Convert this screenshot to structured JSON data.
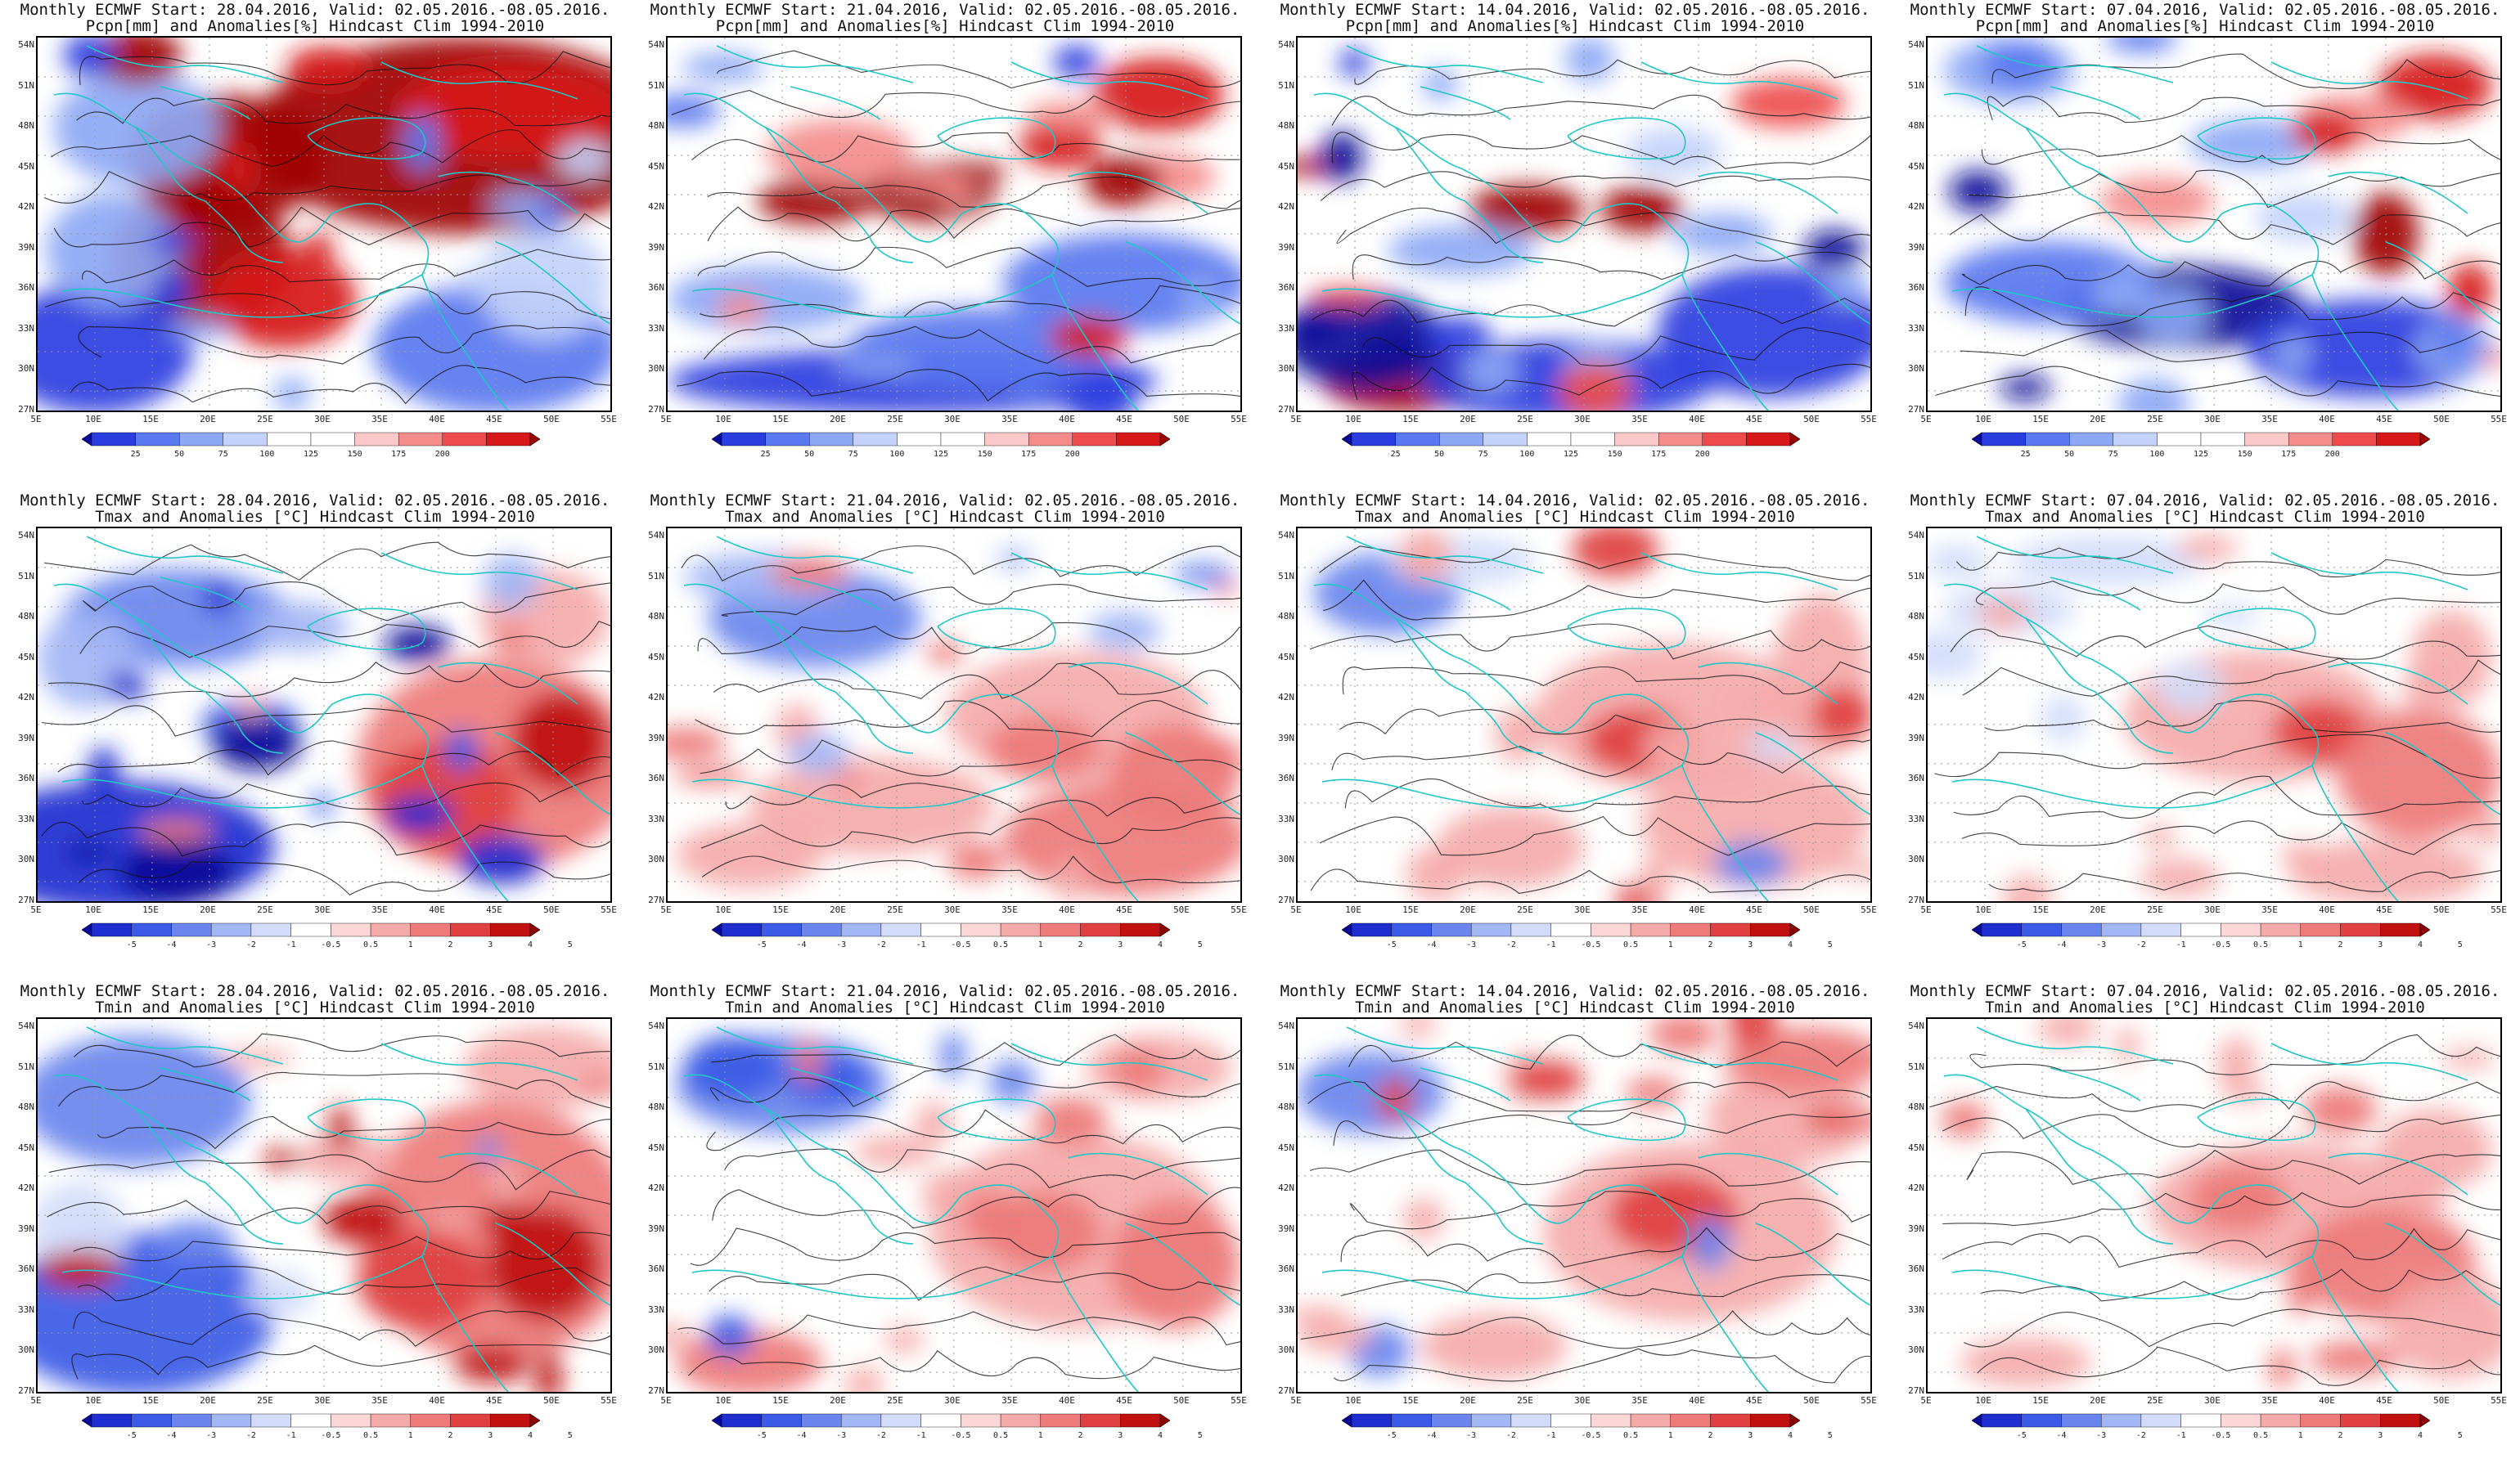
{
  "panels": [
    {
      "title1": "Monthly ECMWF Start: 28.04.2016, Valid: 02.05.2016.-08.05.2016.",
      "title2": "Pcpn[mm] and Anomalies[%] Hindcast Clim 1994-2010",
      "var": "pcpn",
      "pattern": 0
    },
    {
      "title1": "Monthly ECMWF Start: 21.04.2016, Valid: 02.05.2016.-08.05.2016.",
      "title2": "Pcpn[mm] and Anomalies[%] Hindcast Clim 1994-2010",
      "var": "pcpn",
      "pattern": 1
    },
    {
      "title1": "Monthly ECMWF Start: 14.04.2016, Valid: 02.05.2016.-08.05.2016.",
      "title2": "Pcpn[mm] and Anomalies[%] Hindcast Clim 1994-2010",
      "var": "pcpn",
      "pattern": 2
    },
    {
      "title1": "Monthly ECMWF Start: 07.04.2016, Valid: 02.05.2016.-08.05.2016.",
      "title2": "Pcpn[mm] and Anomalies[%] Hindcast Clim 1994-2010",
      "var": "pcpn",
      "pattern": 3
    },
    {
      "title1": "Monthly ECMWF Start: 28.04.2016, Valid: 02.05.2016.-08.05.2016.",
      "title2": "Tmax and Anomalies [°C] Hindcast Clim 1994-2010",
      "var": "tmax",
      "pattern": 4
    },
    {
      "title1": "Monthly ECMWF Start: 21.04.2016, Valid: 02.05.2016.-08.05.2016.",
      "title2": "Tmax and Anomalies [°C] Hindcast Clim 1994-2010",
      "var": "tmax",
      "pattern": 5
    },
    {
      "title1": "Monthly ECMWF Start: 14.04.2016, Valid: 02.05.2016.-08.05.2016.",
      "title2": "Tmax and Anomalies [°C] Hindcast Clim 1994-2010",
      "var": "tmax",
      "pattern": 6
    },
    {
      "title1": "Monthly ECMWF Start: 07.04.2016, Valid: 02.05.2016.-08.05.2016.",
      "title2": "Tmax and Anomalies [°C] Hindcast Clim 1994-2010",
      "var": "tmax",
      "pattern": 7
    },
    {
      "title1": "Monthly ECMWF Start: 28.04.2016, Valid: 02.05.2016.-08.05.2016.",
      "title2": "Tmin and Anomalies [°C] Hindcast Clim 1994-2010",
      "var": "tmin",
      "pattern": 8
    },
    {
      "title1": "Monthly ECMWF Start: 21.04.2016, Valid: 02.05.2016.-08.05.2016.",
      "title2": "Tmin and Anomalies [°C] Hindcast Clim 1994-2010",
      "var": "tmin",
      "pattern": 9
    },
    {
      "title1": "Monthly ECMWF Start: 14.04.2016, Valid: 02.05.2016.-08.05.2016.",
      "title2": "Tmin and Anomalies [°C] Hindcast Clim 1994-2010",
      "var": "tmin",
      "pattern": 10
    },
    {
      "title1": "Monthly ECMWF Start: 07.04.2016, Valid: 02.05.2016.-08.05.2016.",
      "title2": "Tmin and Anomalies [°C] Hindcast Clim 1994-2010",
      "var": "tmin",
      "pattern": 11
    }
  ],
  "lat_labels": [
    "54N",
    "51N",
    "48N",
    "45N",
    "42N",
    "39N",
    "36N",
    "33N",
    "30N",
    "27N"
  ],
  "lon_labels": [
    "5E",
    "10E",
    "15E",
    "20E",
    "25E",
    "30E",
    "35E",
    "40E",
    "45E",
    "50E",
    "55E"
  ],
  "colorbars": {
    "pcpn": {
      "labels": [
        "25",
        "50",
        "75",
        "100",
        "125",
        "150",
        "175",
        "200"
      ],
      "colors": [
        "#0a0a9a",
        "#2a3de0",
        "#5a78f0",
        "#8da8f5",
        "#c3d2fa",
        "#ffffff",
        "#ffffff",
        "#fac8c8",
        "#f48c8c",
        "#ee4c4c",
        "#d61818",
        "#a00000"
      ]
    },
    "temp": {
      "labels": [
        "-5",
        "-4",
        "-3",
        "-2",
        "-1",
        "-0.5",
        "0.5",
        "1",
        "2",
        "3",
        "4",
        "5"
      ],
      "colors": [
        "#0a0a9a",
        "#1e2ed0",
        "#3b5ae6",
        "#6a86ee",
        "#a3b6f5",
        "#d2dcfa",
        "#ffffff",
        "#fad6d6",
        "#f5aaaa",
        "#ee7a7a",
        "#e04040",
        "#c01010",
        "#900000"
      ]
    }
  },
  "colors": {
    "coast": "#1fc7c7",
    "contour": "#111111",
    "grid_dots": "#9a9a9a",
    "frame": "#000000"
  }
}
